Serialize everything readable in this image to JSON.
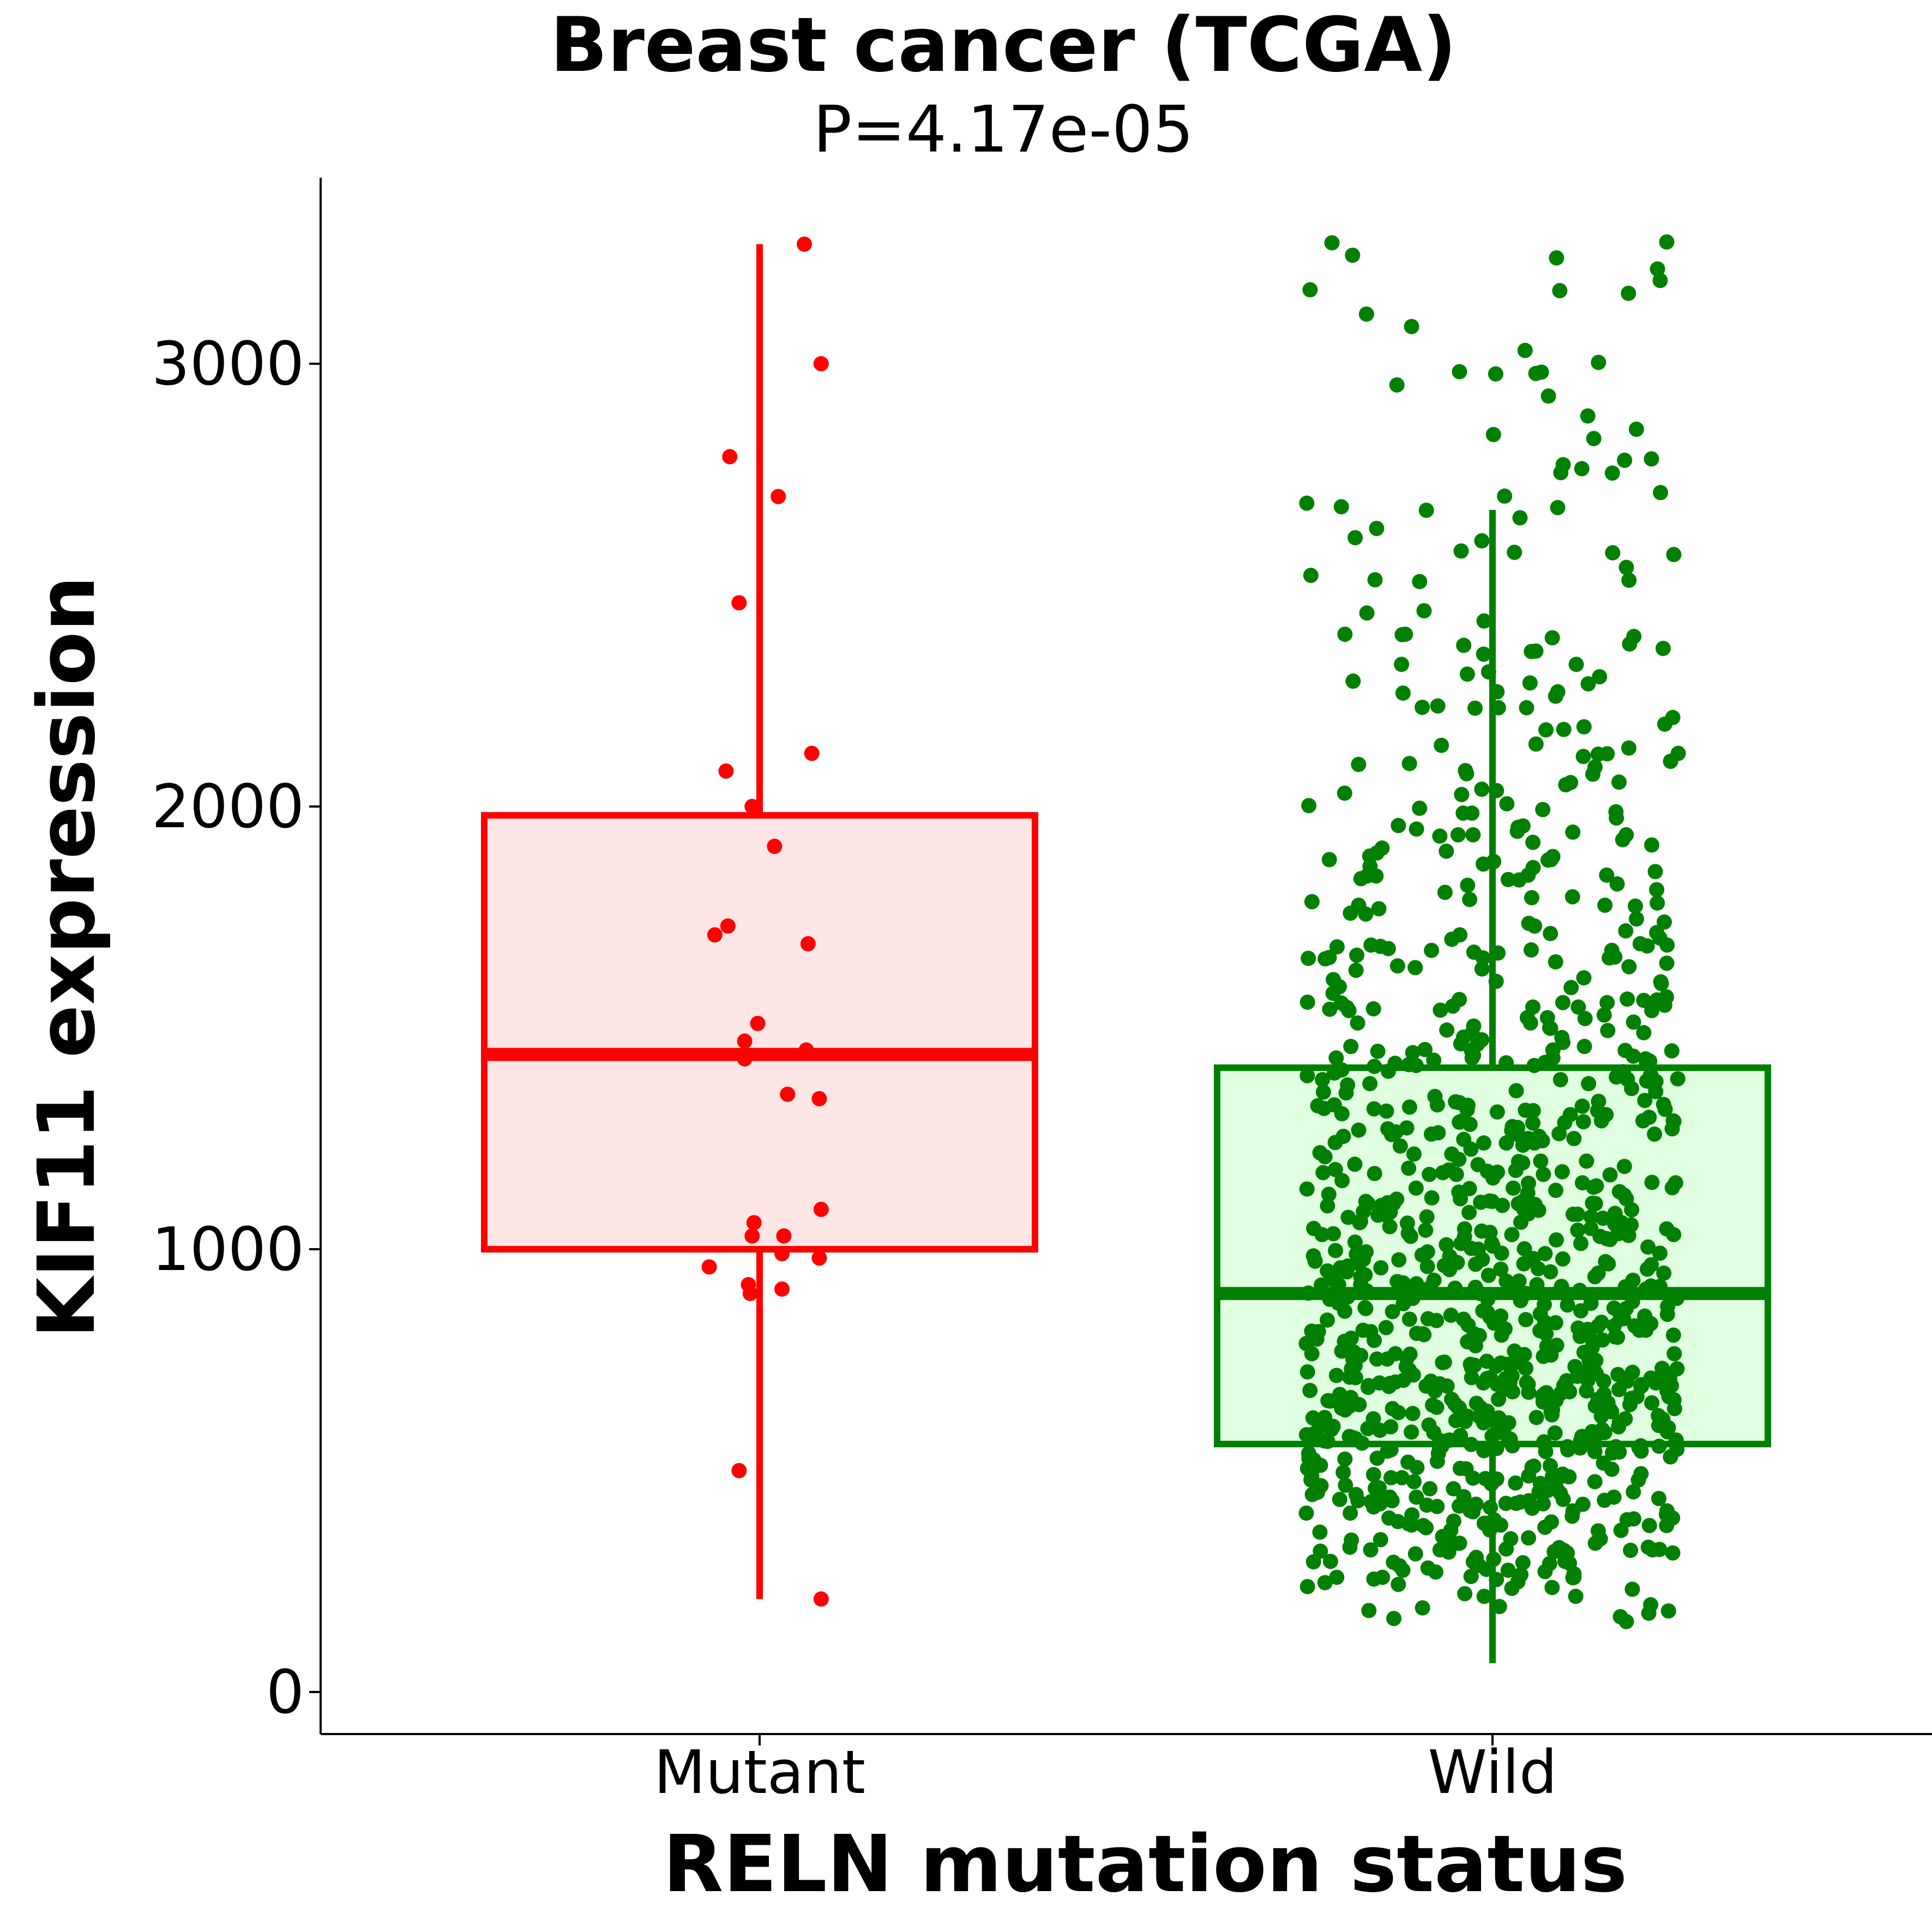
{
  "chart_data": {
    "type": "box",
    "title": "Breast cancer (TCGA)",
    "subtitle": "P=4.17e-05",
    "xlabel": "RELN mutation status",
    "ylabel": "KIF11 expression",
    "ylim": [
      -95,
      3420
    ],
    "yticks": [
      0,
      1000,
      2000,
      3000
    ],
    "grid": false,
    "legend": "none",
    "categories": [
      "Mutant",
      "Wild"
    ],
    "groups": [
      {
        "name": "Mutant",
        "color": "#ff0000",
        "fill": "#ffe6e6",
        "box": {
          "whisker_low": 210,
          "q1": 1000,
          "median": 1440,
          "q3": 1980,
          "whisker_high": 3270
        },
        "points": [
          [
            0.24,
            3270
          ],
          [
            0.33,
            3000
          ],
          [
            -0.16,
            2790
          ],
          [
            0.1,
            2700
          ],
          [
            -0.11,
            2460
          ],
          [
            0.28,
            2120
          ],
          [
            -0.18,
            2080
          ],
          [
            -0.04,
            2000
          ],
          [
            0.08,
            1910
          ],
          [
            -0.17,
            1730
          ],
          [
            -0.24,
            1710
          ],
          [
            0.26,
            1690
          ],
          [
            -0.01,
            1510
          ],
          [
            -0.08,
            1470
          ],
          [
            -0.08,
            1430
          ],
          [
            0.25,
            1450
          ],
          [
            0.15,
            1350
          ],
          [
            0.32,
            1340
          ],
          [
            0.33,
            1090
          ],
          [
            -0.03,
            1060
          ],
          [
            -0.04,
            1030
          ],
          [
            0.13,
            1030
          ],
          [
            0.12,
            990
          ],
          [
            0.32,
            980
          ],
          [
            -0.27,
            960
          ],
          [
            -0.06,
            920
          ],
          [
            -0.05,
            900
          ],
          [
            0.12,
            910
          ],
          [
            -0.11,
            500
          ],
          [
            0.33,
            210
          ]
        ]
      },
      {
        "name": "Wild",
        "color": "#008000",
        "fill": "#e0ffe0",
        "box": {
          "whisker_low": 65,
          "q1": 560,
          "median": 900,
          "q3": 1410,
          "whisker_high": 2670
        },
        "n_points": 1050,
        "seed": 20240517
      }
    ]
  }
}
